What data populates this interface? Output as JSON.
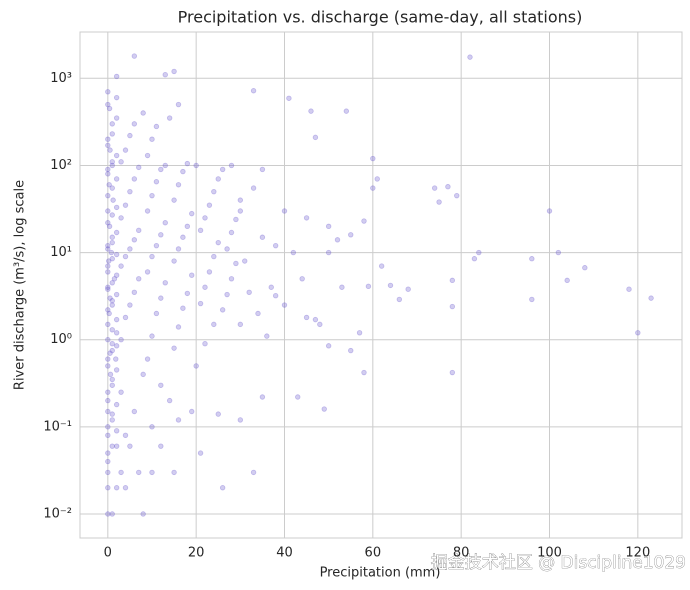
{
  "chart_data": {
    "type": "scatter",
    "title": "Precipitation vs. discharge (same-day, all stations)",
    "x_label": "Precipitation (mm)",
    "y_label": "River discharge (m³/s), log scale",
    "color": "#6a5acd",
    "yscale": "log",
    "grid": true,
    "xlim": [
      -6.3,
      130
    ],
    "ylim": [
      0.0053,
      3400
    ],
    "xticks": [
      0,
      20,
      40,
      60,
      80,
      100,
      120
    ],
    "yticks": [
      {
        "value": 1000,
        "label": "10³"
      },
      {
        "value": 100,
        "label": "10²"
      },
      {
        "value": 10,
        "label": "10¹"
      },
      {
        "value": 1,
        "label": "10⁰"
      },
      {
        "value": 0.1,
        "label": "10⁻¹"
      },
      {
        "value": 0.01,
        "label": "10⁻²"
      }
    ],
    "x": [
      0,
      1,
      8,
      0,
      2,
      4,
      0,
      3,
      7,
      10,
      15,
      0,
      2,
      5,
      12,
      0,
      4,
      10,
      16,
      1,
      6,
      14,
      19,
      25,
      30,
      0,
      1,
      3,
      8,
      12,
      0,
      0.5,
      1,
      2,
      0,
      0.3,
      1,
      0.5,
      0,
      1.5,
      0,
      0.2,
      0.8,
      0,
      1,
      0.4,
      0,
      1.2,
      0.3,
      0,
      1,
      0.5,
      0,
      1,
      0.4,
      0,
      2,
      0,
      0.6,
      1.8,
      3,
      4,
      5,
      6,
      7,
      3,
      4,
      5,
      6,
      7,
      3,
      4,
      5,
      6,
      7,
      3,
      4,
      5,
      6,
      8,
      9,
      10,
      11,
      12,
      13,
      9,
      10,
      11,
      12,
      13,
      9,
      10,
      11,
      12,
      13,
      9,
      10,
      11,
      14,
      16,
      15,
      16,
      17,
      18,
      19,
      15,
      16,
      17,
      18,
      19,
      15,
      16,
      17,
      18,
      20,
      21,
      22,
      23,
      24,
      25,
      21,
      22,
      23,
      24,
      25,
      26,
      20,
      22,
      24,
      26,
      27,
      28,
      29,
      27,
      28,
      29,
      30,
      28,
      31,
      32,
      0,
      1,
      2,
      0,
      1,
      2,
      0,
      1,
      2,
      0,
      1,
      2,
      0,
      1,
      2,
      0,
      1,
      2,
      0,
      1,
      2,
      0,
      1,
      2,
      0,
      1,
      2,
      0,
      1,
      2,
      0,
      1,
      2,
      0,
      1,
      2,
      0,
      1,
      2,
      0,
      2,
      6,
      15,
      13,
      33,
      41,
      46,
      54,
      47,
      82,
      60,
      61,
      60,
      74,
      77,
      75,
      79,
      100,
      96,
      102,
      104,
      108,
      118,
      123,
      120,
      96,
      84,
      83,
      78,
      78,
      78,
      68,
      64,
      59,
      57,
      55,
      58,
      50,
      49,
      43,
      35,
      33,
      26,
      21,
      45,
      40,
      38,
      44,
      42,
      50,
      52,
      55,
      58,
      50,
      38,
      35,
      30,
      33,
      35,
      40,
      45,
      62,
      66,
      53,
      48,
      47,
      36,
      30,
      37,
      34
    ],
    "values": [
      0.01,
      0.01,
      0.01,
      0.02,
      0.02,
      0.02,
      0.03,
      0.03,
      0.03,
      0.03,
      0.03,
      0.05,
      0.06,
      0.06,
      0.06,
      0.08,
      0.08,
      0.1,
      0.12,
      0.12,
      0.15,
      0.2,
      0.15,
      0.14,
      0.12,
      0.2,
      0.3,
      0.25,
      0.4,
      0.3,
      0.5,
      0.7,
      0.9,
      1.2,
      1.5,
      2,
      2.5,
      3,
      4,
      5,
      6,
      8,
      10,
      12,
      15,
      20,
      30,
      40,
      60,
      80,
      100,
      150,
      200,
      300,
      450,
      500,
      600,
      0.15,
      0.4,
      0.6,
      1,
      1.8,
      2.5,
      3.5,
      5,
      7,
      9,
      11,
      14,
      18,
      25,
      35,
      50,
      70,
      95,
      110,
      150,
      220,
      300,
      400,
      0.6,
      1.1,
      2,
      3,
      4.5,
      6,
      9,
      12,
      16,
      22,
      30,
      45,
      65,
      90,
      100,
      130,
      200,
      280,
      350,
      500,
      0.8,
      1.4,
      2.3,
      3.4,
      5.5,
      8,
      11,
      15,
      20,
      28,
      40,
      60,
      85,
      105,
      100,
      2.6,
      4,
      6,
      9,
      13,
      18,
      25,
      35,
      50,
      70,
      90,
      0.5,
      0.9,
      1.5,
      2.2,
      3.3,
      5,
      7.5,
      11,
      17,
      24,
      40,
      100,
      8,
      3.5,
      0.04,
      0.06,
      0.09,
      0.1,
      0.14,
      0.18,
      0.25,
      0.35,
      0.45,
      0.6,
      0.75,
      0.85,
      1,
      1.3,
      1.7,
      2.2,
      2.8,
      3.3,
      3.8,
      4.5,
      5.5,
      7,
      8.5,
      9.5,
      11,
      13,
      17,
      22,
      27,
      33,
      45,
      55,
      70,
      90,
      110,
      130,
      170,
      230,
      350,
      700,
      1050,
      1800,
      1200,
      1100,
      720,
      590,
      420,
      420,
      210,
      1750,
      120,
      70,
      55,
      55,
      57,
      38,
      45,
      30,
      8.5,
      10,
      4.8,
      6.7,
      3.8,
      3,
      1.2,
      2.9,
      10,
      8.5,
      4.8,
      2.4,
      0.42,
      3.8,
      4.2,
      4.1,
      1.2,
      0.75,
      0.42,
      0.85,
      0.16,
      0.22,
      0.22,
      0.03,
      0.02,
      0.05,
      1.8,
      2.5,
      3.2,
      5,
      10,
      10,
      14,
      16,
      23,
      20,
      12,
      15,
      30,
      55,
      90,
      30,
      25,
      7,
      2.9,
      4,
      1.5,
      1.7,
      1.1,
      1.5,
      4,
      2
    ]
  },
  "watermark": "掘金技术社区 @ Discipline1029"
}
